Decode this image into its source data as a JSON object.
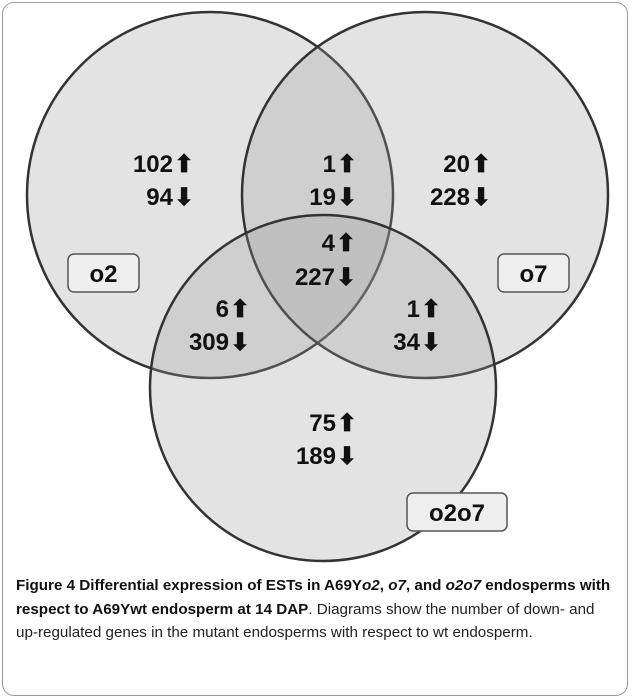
{
  "sets": [
    {
      "id": "o2",
      "label": "o2"
    },
    {
      "id": "o7",
      "label": "o7"
    },
    {
      "id": "o2o7",
      "label": "o2o7"
    }
  ],
  "regions": [
    {
      "id": "only-o2",
      "up": "102",
      "down": "94"
    },
    {
      "id": "o2-o7",
      "up": "1",
      "down": "19"
    },
    {
      "id": "only-o7",
      "up": "20",
      "down": "228"
    },
    {
      "id": "all-three",
      "up": "4",
      "down": "227"
    },
    {
      "id": "o2-o2o7",
      "up": "6",
      "down": "309"
    },
    {
      "id": "o7-o2o7",
      "up": "1",
      "down": "34"
    },
    {
      "id": "only-o2o7",
      "up": "75",
      "down": "189"
    }
  ],
  "arrows": {
    "up": "⬆",
    "down": "⬇"
  },
  "colors": {
    "circle_fill": "#999999",
    "circle_stroke": "#333333",
    "label_box_fill": "#eeeeee"
  },
  "caption": {
    "p1": "Figure 4 Differential expression of ESTs in A69Y",
    "p2": "o2",
    "p3": ", ",
    "p4": "o7",
    "p5": ", and ",
    "p6": "o2o7",
    "p7": " endosperms with respect to A69Ywt endosperm at 14 DAP",
    "p8": ". Diagrams show the number of down- and up-regulated genes in the mutant endosperms with respect to wt endosperm."
  }
}
